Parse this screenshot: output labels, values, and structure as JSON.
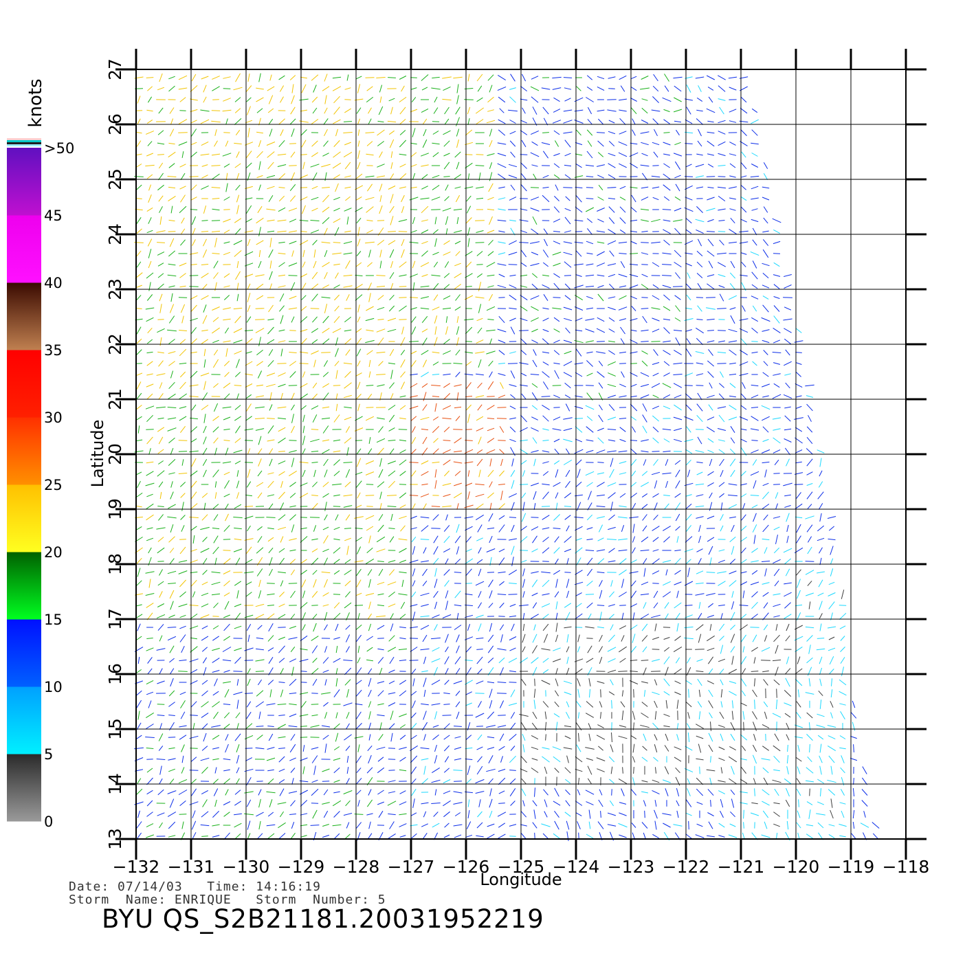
{
  "chart_data": {
    "type": "vector-field",
    "title": "BYU  QS_S2B21181.20031952219",
    "xlabel": "Longitude",
    "ylabel": "Latitude",
    "xlim": [
      -132,
      -118
    ],
    "ylim": [
      13,
      27
    ],
    "xticks": [
      "-132",
      "-131",
      "-130",
      "-129",
      "-128",
      "-127",
      "-126",
      "-125",
      "-124",
      "-123",
      "-122",
      "-121",
      "-120",
      "-119",
      "-118"
    ],
    "yticks": [
      "13",
      "14",
      "15",
      "16",
      "17",
      "18",
      "19",
      "20",
      "21",
      "22",
      "23",
      "24",
      "25",
      "26",
      "27"
    ],
    "grid": true,
    "swath_right_edge": [
      [
        -120.9,
        27
      ],
      [
        -120.3,
        24
      ],
      [
        -119.7,
        21
      ],
      [
        -119.2,
        18
      ],
      [
        -118.9,
        15
      ],
      [
        -118.5,
        13
      ]
    ],
    "colorbar": {
      "unit": "knots",
      "ticks": [
        "0",
        "5",
        "10",
        "15",
        "20",
        "25",
        "30",
        "35",
        "40",
        "45",
        ">50"
      ],
      "bands": [
        {
          "from": 0,
          "to": 5,
          "top_color": "#2a2a2a",
          "bottom_color": "#9a9a9a"
        },
        {
          "from": 5,
          "to": 10,
          "top_color": "#00a0ff",
          "bottom_color": "#00f0ff"
        },
        {
          "from": 10,
          "to": 15,
          "top_color": "#0010ff",
          "bottom_color": "#0060ff"
        },
        {
          "from": 15,
          "to": 20,
          "top_color": "#006000",
          "bottom_color": "#00ff20"
        },
        {
          "from": 20,
          "to": 25,
          "top_color": "#ffc000",
          "bottom_color": "#ffff20"
        },
        {
          "from": 25,
          "to": 30,
          "top_color": "#ff3000",
          "bottom_color": "#ff9000"
        },
        {
          "from": 30,
          "to": 35,
          "top_color": "#ff0000",
          "bottom_color": "#ff2000"
        },
        {
          "from": 35,
          "to": 40,
          "top_color": "#3a0a00",
          "bottom_color": "#c08050"
        },
        {
          "from": 40,
          "to": 45,
          "top_color": "#ee00ee",
          "bottom_color": "#ff10ff"
        },
        {
          "from": 45,
          "to": 50,
          "top_color": "#6010c0",
          "bottom_color": "#c010d0"
        }
      ]
    },
    "speed_regions": [
      {
        "lon": [
          -132,
          -127
        ],
        "lat": [
          21,
          27
        ],
        "knots": 21
      },
      {
        "lon": [
          -127,
          -125.5
        ],
        "lat": [
          21.5,
          27
        ],
        "knots": 19
      },
      {
        "lon": [
          -127,
          -125.3
        ],
        "lat": [
          19,
          21.3
        ],
        "knots": 27
      },
      {
        "lon": [
          -132,
          -127
        ],
        "lat": [
          17,
          21
        ],
        "knots": 19
      },
      {
        "lon": [
          -132,
          -127
        ],
        "lat": [
          13,
          17
        ],
        "knots": 14
      },
      {
        "lon": [
          -125,
          -122
        ],
        "lat": [
          21,
          27
        ],
        "knots": 13
      },
      {
        "lon": [
          -125,
          -120
        ],
        "lat": [
          17,
          21
        ],
        "knots": 11
      },
      {
        "lon": [
          -125,
          -120
        ],
        "lat": [
          14,
          17
        ],
        "knots": 4
      },
      {
        "lon": [
          -121,
          -119
        ],
        "lat": [
          13,
          18
        ],
        "knots": 7
      }
    ]
  },
  "footer": {
    "date_line": "Date: 07/14/03   Time: 14:16:19",
    "storm_line": "Storm  Name: ENRIQUE   Storm  Number: 5"
  }
}
